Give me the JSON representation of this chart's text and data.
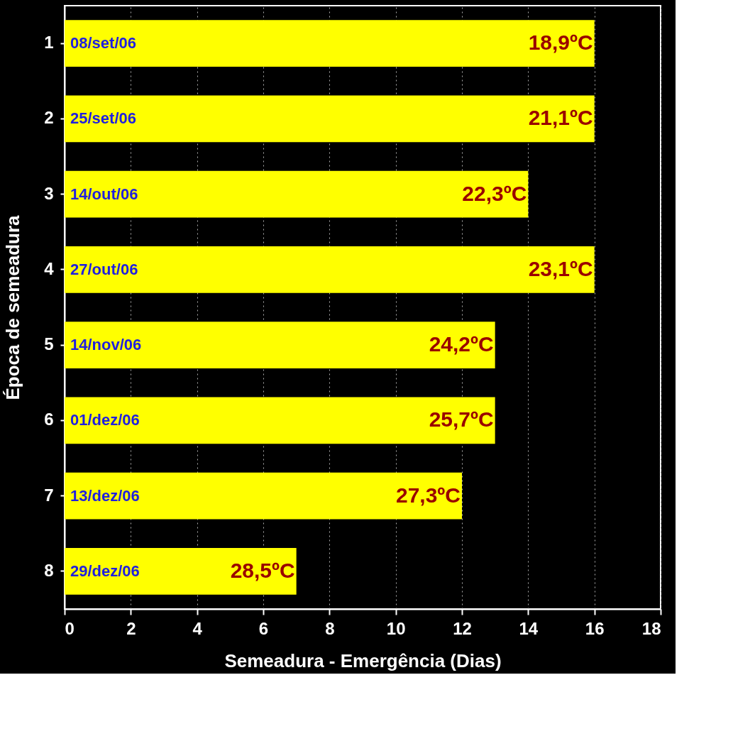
{
  "chart_data": {
    "type": "bar",
    "orientation": "horizontal",
    "xlabel": "Semeadura - Emergência (Dias)",
    "ylabel": "Época de semeadura",
    "categories": [
      "1",
      "2",
      "3",
      "4",
      "5",
      "6",
      "7",
      "8"
    ],
    "values": [
      16,
      16,
      14,
      16,
      13,
      13,
      12,
      7
    ],
    "color": "#ffff00",
    "xlim": [
      0,
      18
    ],
    "xticks": [
      0,
      2,
      4,
      6,
      8,
      10,
      12,
      14,
      16,
      18
    ],
    "grid": "x",
    "annotations": [
      {
        "text": "08/set/06",
        "x": 0,
        "y": "1"
      },
      {
        "text": "25/set/06",
        "x": 0,
        "y": "2"
      },
      {
        "text": "14/out/06",
        "x": 0,
        "y": "3"
      },
      {
        "text": "27/out/06",
        "x": 0,
        "y": "4"
      },
      {
        "text": "14/nov/06",
        "x": 0,
        "y": "5"
      },
      {
        "text": "01/dez/06",
        "x": 0,
        "y": "6"
      },
      {
        "text": "13/dez/06",
        "x": 0,
        "y": "7"
      },
      {
        "text": "29/dez/06",
        "x": 0,
        "y": "8"
      },
      {
        "text": "18,9ºC",
        "x": 16,
        "y": "1"
      },
      {
        "text": "21,1ºC",
        "x": 16,
        "y": "2"
      },
      {
        "text": "22,3ºC",
        "x": 14,
        "y": "3"
      },
      {
        "text": "23,1ºC",
        "x": 16,
        "y": "4"
      },
      {
        "text": "24,2ºC",
        "x": 13,
        "y": "5"
      },
      {
        "text": "25,7ºC",
        "x": 13,
        "y": "6"
      },
      {
        "text": "27,3ºC",
        "x": 12,
        "y": "7"
      },
      {
        "text": "28,5ºC",
        "x": 7,
        "y": "8"
      }
    ]
  }
}
